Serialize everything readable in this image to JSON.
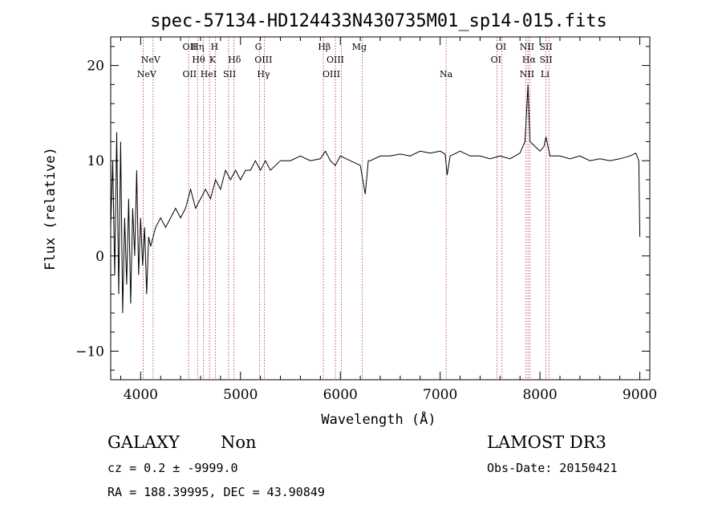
{
  "chart_data": {
    "type": "line",
    "title": "spec-57134-HD124433N430735M01_sp14-015.fits",
    "xlabel": "Wavelength (Å)",
    "ylabel": "Flux (relative)",
    "xlim": [
      3700,
      9100
    ],
    "ylim": [
      -13,
      23
    ],
    "xticks": [
      4000,
      5000,
      6000,
      7000,
      8000,
      9000
    ],
    "yticks": [
      -10,
      0,
      10,
      20
    ],
    "grid": false,
    "series": [
      {
        "name": "spectrum",
        "x": [
          3700,
          3720,
          3740,
          3760,
          3780,
          3800,
          3820,
          3840,
          3860,
          3880,
          3900,
          3920,
          3940,
          3960,
          3980,
          4000,
          4020,
          4040,
          4060,
          4080,
          4100,
          4150,
          4200,
          4250,
          4300,
          4350,
          4400,
          4450,
          4500,
          4550,
          4600,
          4650,
          4700,
          4750,
          4800,
          4850,
          4900,
          4950,
          5000,
          5050,
          5100,
          5150,
          5200,
          5250,
          5300,
          5400,
          5500,
          5600,
          5700,
          5800,
          5850,
          5900,
          5950,
          6000,
          6100,
          6200,
          6250,
          6280,
          6300,
          6400,
          6500,
          6600,
          6700,
          6800,
          6900,
          7000,
          7050,
          7070,
          7100,
          7200,
          7300,
          7400,
          7500,
          7600,
          7700,
          7800,
          7850,
          7880,
          7900,
          7950,
          8000,
          8040,
          8060,
          8080,
          8100,
          8200,
          8300,
          8400,
          8500,
          8600,
          8700,
          8800,
          8900,
          8960,
          8990,
          9000
        ],
        "y": [
          3,
          10,
          -2,
          13,
          -4,
          12,
          -6,
          4,
          -3,
          6,
          -5,
          5,
          0,
          9,
          -2,
          4,
          -1,
          3,
          -4,
          2,
          1,
          3,
          4,
          3,
          4,
          5,
          4,
          5,
          7,
          5,
          6,
          7,
          6,
          8,
          7,
          9,
          8,
          9,
          8,
          9,
          9,
          10,
          9,
          10,
          9,
          10,
          10,
          10.5,
          10,
          10.2,
          11,
          10,
          9.5,
          10.5,
          10,
          9.5,
          6.5,
          10,
          10,
          10.5,
          10.5,
          10.7,
          10.5,
          11,
          10.8,
          11,
          10.7,
          8.5,
          10.5,
          11,
          10.5,
          10.5,
          10.2,
          10.5,
          10.2,
          10.8,
          12,
          18,
          12,
          11.5,
          11,
          11.5,
          12.5,
          11.5,
          10.5,
          10.5,
          10.2,
          10.5,
          10,
          10.2,
          10,
          10.2,
          10.5,
          10.8,
          10,
          2
        ]
      }
    ],
    "line_labels": [
      {
        "label": "NeV",
        "wavelength": 4060,
        "row": 1
      },
      {
        "label": "NeV",
        "wavelength": 4100,
        "row": 2
      },
      {
        "label": "OII",
        "wavelength": 4490,
        "row": 1
      },
      {
        "label": "OII",
        "wavelength": 4490,
        "row": 3
      },
      {
        "label": "Hη",
        "wavelength": 4570,
        "row": 3
      },
      {
        "label": "Hθ",
        "wavelength": 4580,
        "row": 2
      },
      {
        "label": "HeI",
        "wavelength": 4680,
        "row": 1
      },
      {
        "label": "H",
        "wavelength": 4740,
        "row": 3
      },
      {
        "label": "K",
        "wavelength": 4720,
        "row": 2
      },
      {
        "label": "SII",
        "wavelength": 4890,
        "row": 1
      },
      {
        "label": "Hδ",
        "wavelength": 4940,
        "row": 2
      },
      {
        "label": "G",
        "wavelength": 5180,
        "row": 3
      },
      {
        "label": "OIII",
        "wavelength": 5230,
        "row": 2
      },
      {
        "label": "Hγ",
        "wavelength": 5230,
        "row": 1
      },
      {
        "label": "Hβ",
        "wavelength": 5840,
        "row": 3
      },
      {
        "label": "OIII",
        "wavelength": 5950,
        "row": 2
      },
      {
        "label": "OIII",
        "wavelength": 5910,
        "row": 1
      },
      {
        "label": "Mg",
        "wavelength": 6190,
        "row": 3
      },
      {
        "label": "Na",
        "wavelength": 7060,
        "row": 1
      },
      {
        "label": "OI",
        "wavelength": 7610,
        "row": 3
      },
      {
        "label": "OI",
        "wavelength": 7560,
        "row": 2
      },
      {
        "label": "NII",
        "wavelength": 7870,
        "row": 3
      },
      {
        "label": "Hα",
        "wavelength": 7890,
        "row": 2
      },
      {
        "label": "NII",
        "wavelength": 7870,
        "row": 1
      },
      {
        "label": "SII",
        "wavelength": 8060,
        "row": 3
      },
      {
        "label": "SII",
        "wavelength": 8060,
        "row": 2
      },
      {
        "label": "Li",
        "wavelength": 8050,
        "row": 1
      }
    ],
    "line_markers": [
      4025,
      4125,
      4480,
      4570,
      4630,
      4690,
      4750,
      4880,
      4935,
      5190,
      5240,
      5830,
      5950,
      6010,
      6220,
      7060,
      7570,
      7620,
      7860,
      7880,
      7900,
      8060,
      8090
    ]
  },
  "info": {
    "object_type": "GALAXY",
    "subclass": "Non",
    "survey": "LAMOST DR3",
    "redshift": "cz = 0.2 ± -9999.0",
    "obs_date": "Obs-Date: 20150421",
    "coords": "RA = 188.39995, DEC =  43.90849"
  },
  "colors": {
    "axes": "#000000",
    "spectrum": "#000000",
    "markers": "#b03030"
  }
}
